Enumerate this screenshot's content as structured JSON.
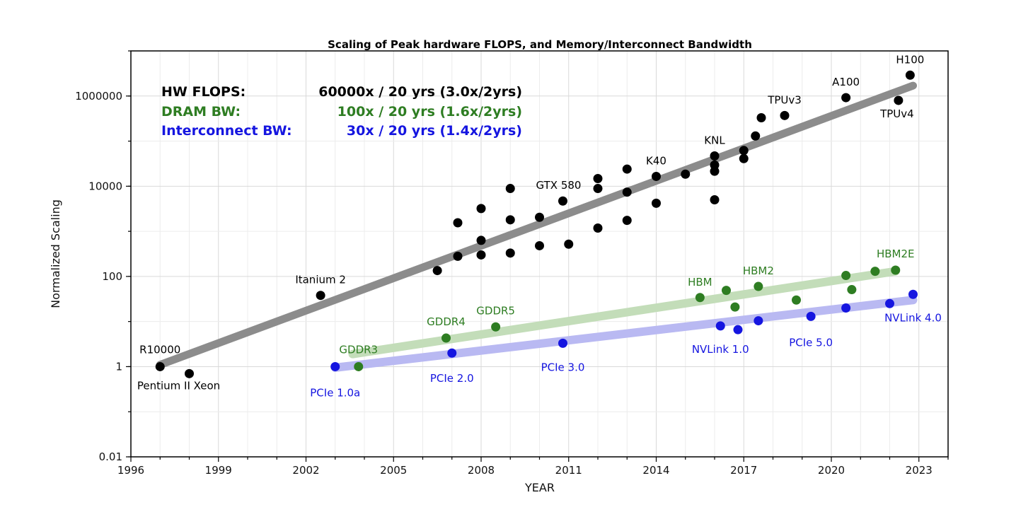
{
  "chart_data": {
    "type": "scatter",
    "title": "Scaling of Peak hardware FLOPS, and Memory/Interconnect Bandwidth",
    "xlabel": "YEAR",
    "ylabel": "Normalized Scaling",
    "x_scale": "linear",
    "y_scale": "log",
    "xlim": [
      1996,
      2024
    ],
    "ylim": [
      0.01,
      10000000
    ],
    "x_major_ticks": [
      1996,
      1999,
      2002,
      2005,
      2008,
      2011,
      2014,
      2017,
      2020,
      2023
    ],
    "x_tick_labels": [
      "1996",
      "1999",
      "2002",
      "2005",
      "2008",
      "2011",
      "2014",
      "2017",
      "2020",
      "2023"
    ],
    "y_ticks": [
      0.01,
      1,
      100,
      10000,
      1000000
    ],
    "y_tick_labels": [
      "0.01",
      "1",
      "100",
      "10000",
      "1000000"
    ],
    "grid": true,
    "summary": [
      {
        "label": "HW FLOPS:",
        "value": "60000x / 20 yrs (3.0x/2yrs)",
        "color": "#000000"
      },
      {
        "label": "DRAM BW:",
        "value": "100x / 20 yrs (1.6x/2yrs)",
        "color": "#2e7d22"
      },
      {
        "label": "Interconnect BW:",
        "value": "30x / 20 yrs (1.4x/2yrs)",
        "color": "#1515e0"
      }
    ],
    "series": [
      {
        "key": "hw_flops",
        "color": "#000000",
        "trend_color": "#8c8c8c",
        "trend": [
          [
            1997.0,
            1.1
          ],
          [
            2022.8,
            1700000
          ]
        ],
        "points": [
          {
            "x": 1997.0,
            "y": 1.0,
            "label": "R10000"
          },
          {
            "x": 1998.0,
            "y": 0.7,
            "label": "Pentium II Xeon"
          },
          {
            "x": 2002.5,
            "y": 38,
            "label": "Itanium 2"
          },
          {
            "x": 2006.5,
            "y": 135
          },
          {
            "x": 2007.2,
            "y": 280
          },
          {
            "x": 2007.2,
            "y": 1550
          },
          {
            "x": 2008.0,
            "y": 300
          },
          {
            "x": 2008.0,
            "y": 630
          },
          {
            "x": 2008.0,
            "y": 3200
          },
          {
            "x": 2009.0,
            "y": 330
          },
          {
            "x": 2009.0,
            "y": 1800
          },
          {
            "x": 2009.0,
            "y": 8900
          },
          {
            "x": 2010.0,
            "y": 480
          },
          {
            "x": 2010.0,
            "y": 2050
          },
          {
            "x": 2010.8,
            "y": 4700,
            "label": "GTX 580"
          },
          {
            "x": 2011.0,
            "y": 520
          },
          {
            "x": 2012.0,
            "y": 1180
          },
          {
            "x": 2012.0,
            "y": 8900
          },
          {
            "x": 2012.0,
            "y": 14800
          },
          {
            "x": 2013.0,
            "y": 1750
          },
          {
            "x": 2013.0,
            "y": 7400
          },
          {
            "x": 2013.0,
            "y": 24000
          },
          {
            "x": 2014.0,
            "y": 16500,
            "label": "K40"
          },
          {
            "x": 2014.0,
            "y": 4200
          },
          {
            "x": 2015.0,
            "y": 18500
          },
          {
            "x": 2016.0,
            "y": 21500
          },
          {
            "x": 2016.0,
            "y": 29500
          },
          {
            "x": 2016.0,
            "y": 47000,
            "label": "KNL"
          },
          {
            "x": 2016.0,
            "y": 5000
          },
          {
            "x": 2017.0,
            "y": 41000
          },
          {
            "x": 2017.0,
            "y": 62000
          },
          {
            "x": 2017.4,
            "y": 130000
          },
          {
            "x": 2017.6,
            "y": 330000
          },
          {
            "x": 2018.4,
            "y": 370000,
            "label": "TPUv3"
          },
          {
            "x": 2020.5,
            "y": 920000,
            "label": "A100"
          },
          {
            "x": 2022.3,
            "y": 800000,
            "label": "TPUv4"
          },
          {
            "x": 2022.7,
            "y": 2900000,
            "label": "H100"
          }
        ]
      },
      {
        "key": "dram_bw",
        "color": "#2e7d22",
        "trend_color": "#c3ddb9",
        "trend": [
          [
            2003.6,
            1.9
          ],
          [
            2022.2,
            130
          ]
        ],
        "points": [
          {
            "x": 2003.8,
            "y": 1.0,
            "label": "GDDR3"
          },
          {
            "x": 2006.8,
            "y": 4.3,
            "label": "GDDR4"
          },
          {
            "x": 2008.5,
            "y": 7.6,
            "label": "GDDR5"
          },
          {
            "x": 2015.5,
            "y": 34,
            "label": "HBM"
          },
          {
            "x": 2016.4,
            "y": 49
          },
          {
            "x": 2016.7,
            "y": 21
          },
          {
            "x": 2017.5,
            "y": 60,
            "label": "HBM2"
          },
          {
            "x": 2018.8,
            "y": 30
          },
          {
            "x": 2020.5,
            "y": 105
          },
          {
            "x": 2020.7,
            "y": 51
          },
          {
            "x": 2021.5,
            "y": 130
          },
          {
            "x": 2022.2,
            "y": 138,
            "label": "HBM2E"
          }
        ]
      },
      {
        "key": "interconnect_bw",
        "color": "#1515e0",
        "trend_color": "#b9b9f2",
        "trend": [
          [
            2003.0,
            0.95
          ],
          [
            2022.8,
            30
          ]
        ],
        "points": [
          {
            "x": 2003.0,
            "y": 1.0,
            "label": "PCIe 1.0a"
          },
          {
            "x": 2007.0,
            "y": 2.0,
            "label": "PCIe 2.0"
          },
          {
            "x": 2010.8,
            "y": 3.3,
            "label": "PCIe 3.0"
          },
          {
            "x": 2016.2,
            "y": 8.0,
            "label": "NVLink 1.0"
          },
          {
            "x": 2016.8,
            "y": 6.6
          },
          {
            "x": 2017.5,
            "y": 10.4
          },
          {
            "x": 2019.3,
            "y": 13,
            "label": "PCIe 5.0"
          },
          {
            "x": 2020.5,
            "y": 20
          },
          {
            "x": 2022.0,
            "y": 25
          },
          {
            "x": 2022.8,
            "y": 40,
            "label": "NVLink 4.0"
          }
        ]
      }
    ]
  }
}
